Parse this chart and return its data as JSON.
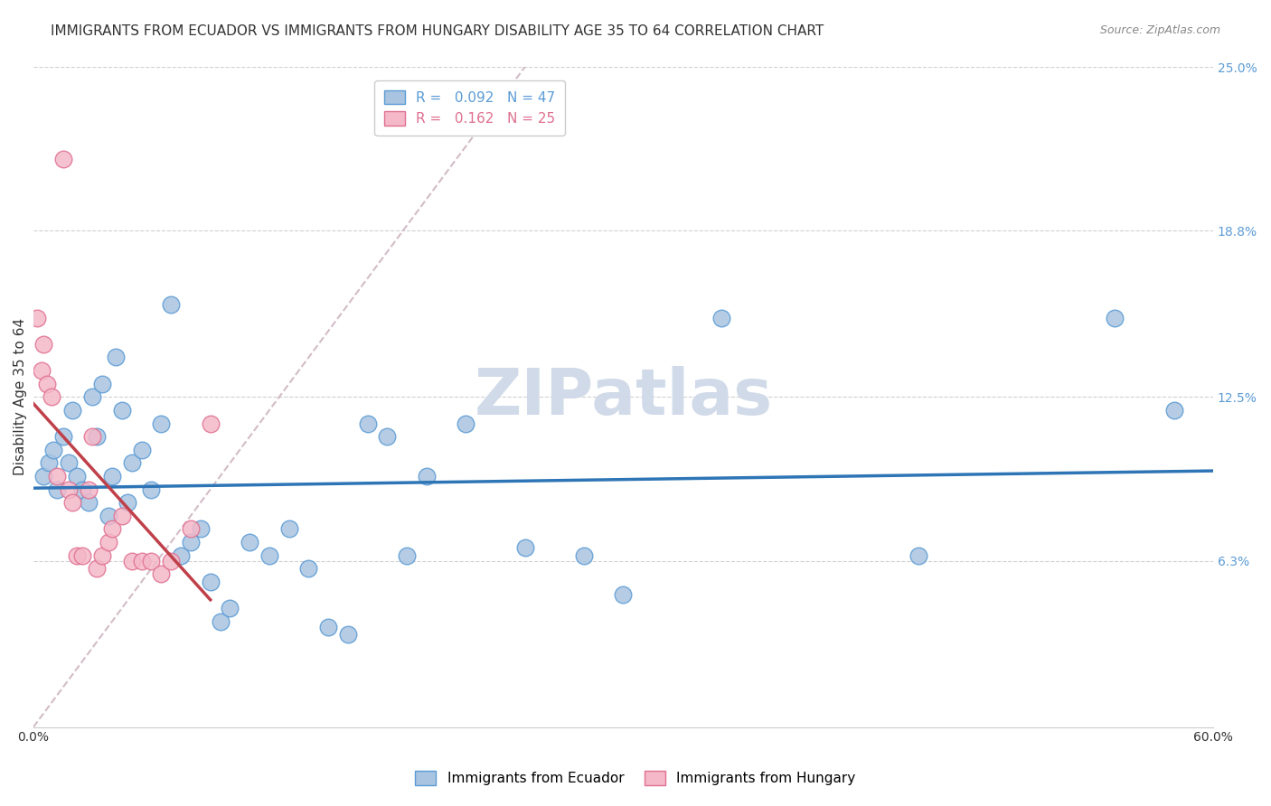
{
  "title": "IMMIGRANTS FROM ECUADOR VS IMMIGRANTS FROM HUNGARY DISABILITY AGE 35 TO 64 CORRELATION CHART",
  "source": "Source: ZipAtlas.com",
  "ylabel": "Disability Age 35 to 64",
  "xlim": [
    0.0,
    0.6
  ],
  "ylim": [
    0.0,
    0.25
  ],
  "ecuador_color": "#a8c4e0",
  "ecuador_edge_color": "#5b9bd5",
  "hungary_color": "#f4b8c8",
  "hungary_edge_color": "#e07090",
  "trend_ecuador_color": "#2e75b6",
  "trend_hungary_color": "#c0404a",
  "diagonal_color": "#c0a0b0",
  "ecuador_R": 0.092,
  "ecuador_N": 47,
  "hungary_R": 0.162,
  "hungary_N": 25,
  "ecuador_x": [
    0.005,
    0.008,
    0.01,
    0.012,
    0.015,
    0.018,
    0.02,
    0.022,
    0.025,
    0.028,
    0.03,
    0.032,
    0.035,
    0.038,
    0.04,
    0.042,
    0.045,
    0.048,
    0.05,
    0.055,
    0.06,
    0.065,
    0.07,
    0.075,
    0.08,
    0.085,
    0.09,
    0.095,
    0.1,
    0.11,
    0.12,
    0.13,
    0.14,
    0.15,
    0.16,
    0.17,
    0.18,
    0.19,
    0.2,
    0.22,
    0.25,
    0.28,
    0.3,
    0.35,
    0.45,
    0.55,
    0.58
  ],
  "ecuador_y": [
    0.095,
    0.1,
    0.105,
    0.09,
    0.11,
    0.1,
    0.12,
    0.095,
    0.09,
    0.085,
    0.125,
    0.11,
    0.13,
    0.08,
    0.095,
    0.14,
    0.12,
    0.085,
    0.1,
    0.105,
    0.09,
    0.115,
    0.16,
    0.065,
    0.07,
    0.075,
    0.055,
    0.04,
    0.045,
    0.07,
    0.065,
    0.075,
    0.06,
    0.038,
    0.035,
    0.115,
    0.11,
    0.065,
    0.095,
    0.115,
    0.068,
    0.065,
    0.05,
    0.155,
    0.065,
    0.155,
    0.12
  ],
  "hungary_x": [
    0.002,
    0.004,
    0.005,
    0.007,
    0.009,
    0.012,
    0.015,
    0.018,
    0.02,
    0.022,
    0.025,
    0.028,
    0.03,
    0.032,
    0.035,
    0.038,
    0.04,
    0.045,
    0.05,
    0.055,
    0.06,
    0.065,
    0.07,
    0.08,
    0.09
  ],
  "hungary_y": [
    0.155,
    0.135,
    0.145,
    0.13,
    0.125,
    0.095,
    0.215,
    0.09,
    0.085,
    0.065,
    0.065,
    0.09,
    0.11,
    0.06,
    0.065,
    0.07,
    0.075,
    0.08,
    0.063,
    0.063,
    0.063,
    0.058,
    0.063,
    0.075,
    0.115
  ],
  "background_color": "#ffffff",
  "grid_color": "#d0d0d0",
  "title_fontsize": 11,
  "axis_label_fontsize": 11,
  "tick_fontsize": 10,
  "legend_fontsize": 11,
  "watermark_text": "ZIPatlas",
  "watermark_color": "#d0dae8",
  "watermark_fontsize": 52,
  "ytick_vals": [
    0.063,
    0.125,
    0.188,
    0.25
  ],
  "ytick_labels": [
    "6.3%",
    "12.5%",
    "18.8%",
    "25.0%"
  ]
}
